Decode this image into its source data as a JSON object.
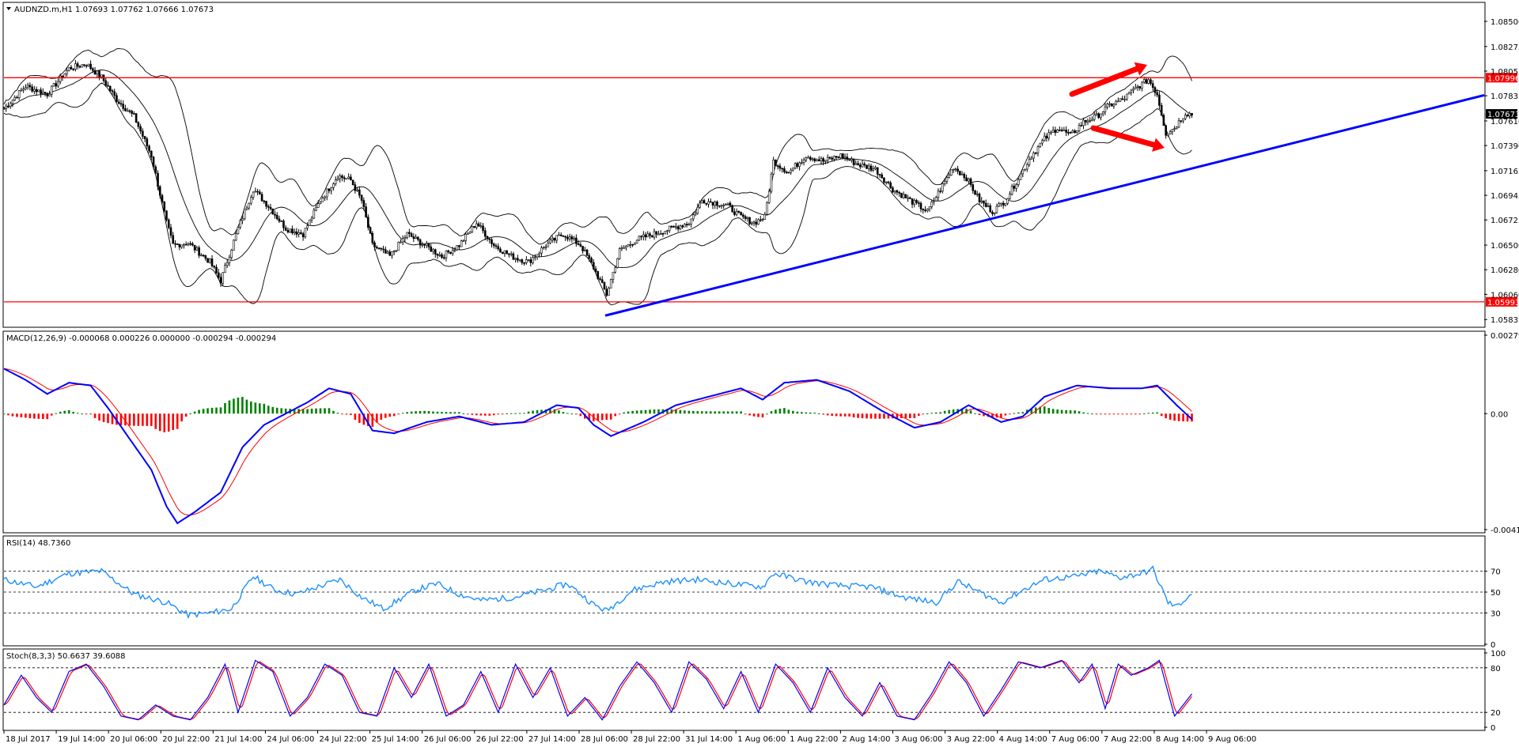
{
  "chart_data": {
    "type": "candlestick",
    "symbol_header": "AUDNZD.m,H1  1.07693 1.07762 1.07666 1.07673",
    "ohlc_last": {
      "open": 1.07693,
      "high": 1.07762,
      "low": 1.07666,
      "close": 1.07673
    },
    "x_tick_labels": [
      "18 Jul 2017",
      "19 Jul 14:00",
      "20 Jul 06:00",
      "20 Jul 22:00",
      "21 Jul 14:00",
      "24 Jul 06:00",
      "24 Jul 22:00",
      "25 Jul 14:00",
      "26 Jul 06:00",
      "26 Jul 22:00",
      "27 Jul 14:00",
      "28 Jul 06:00",
      "28 Jul 22:00",
      "31 Jul 14:00",
      "1 Aug 06:00",
      "1 Aug 22:00",
      "2 Aug 14:00",
      "3 Aug 06:00",
      "3 Aug 22:00",
      "4 Aug 14:00",
      "7 Aug 06:00",
      "7 Aug 22:00",
      "8 Aug 14:00",
      "9 Aug 06:00"
    ],
    "panels": [
      {
        "id": "price",
        "y_tick_labels": [
          "1.08500",
          "1.08275",
          "1.08055",
          "1.07835",
          "1.07610",
          "1.07390",
          "1.07165",
          "1.06945",
          "1.06725",
          "1.06500",
          "1.06280",
          "1.06060",
          "1.05835"
        ],
        "y_range": [
          1.0578,
          1.0862
        ],
        "current_price_label": "1.07673",
        "current_price": 1.07673,
        "horizontal_levels": [
          {
            "value": 1.07996,
            "label": "1.07996",
            "color": "#ff0000"
          },
          {
            "value": 1.05993,
            "label": "1.05993",
            "color": "#ff0000"
          }
        ],
        "trendline": {
          "from": [
            "28 Jul 22:00",
            1.0587
          ],
          "to": [
            "9 Aug 06:00",
            1.0714
          ],
          "color": "#0000ff"
        },
        "annotations": [
          "red-arrow-up: rising highs near 1.080",
          "red-arrow-down: falling oscillator divergence"
        ],
        "bollinger_bands": {
          "color": "#000000"
        }
      },
      {
        "id": "macd",
        "title": "MACD(12,26,9) -0.000068 0.000226 0.000000 -0.000294 -0.000294",
        "y_tick_labels": [
          "0.002791",
          "0.00",
          "-0.004126"
        ],
        "y_range": [
          -0.004126,
          0.002791
        ],
        "lines": [
          {
            "name": "MACD",
            "color": "#0000ff"
          },
          {
            "name": "Signal",
            "color": "#ff0000"
          }
        ],
        "histogram_colors": {
          "positive": "#008000",
          "negative": "#ff0000"
        }
      },
      {
        "id": "rsi",
        "title": "RSI(14) 48.7360",
        "y_tick_labels": [
          "70",
          "50",
          "30",
          "0"
        ],
        "y_range": [
          0,
          100
        ],
        "levels": [
          70,
          50,
          30
        ],
        "line_color": "#1e90ff"
      },
      {
        "id": "stoch",
        "title": "Stoch(8,3,3) 50.6637 39.6088",
        "y_tick_labels": [
          "100",
          "80",
          "20",
          "0"
        ],
        "y_range": [
          0,
          100
        ],
        "levels": [
          80,
          20
        ],
        "lines": [
          {
            "name": "%K",
            "color": "#0000ff"
          },
          {
            "name": "%D",
            "color": "#ff0000"
          }
        ]
      }
    ],
    "price_keypoints": [
      [
        0,
        1.0772
      ],
      [
        10,
        1.0792
      ],
      [
        20,
        1.0785
      ],
      [
        30,
        1.0808
      ],
      [
        38,
        1.0812
      ],
      [
        45,
        1.08
      ],
      [
        52,
        1.078
      ],
      [
        60,
        1.0765
      ],
      [
        68,
        1.073
      ],
      [
        75,
        1.067
      ],
      [
        78,
        1.065
      ],
      [
        85,
        1.0652
      ],
      [
        95,
        1.0635
      ],
      [
        100,
        1.0618
      ],
      [
        108,
        1.0665
      ],
      [
        115,
        1.07
      ],
      [
        122,
        1.0685
      ],
      [
        130,
        1.0665
      ],
      [
        138,
        1.066
      ],
      [
        146,
        1.069
      ],
      [
        154,
        1.0712
      ],
      [
        160,
        1.0708
      ],
      [
        165,
        1.069
      ],
      [
        170,
        1.065
      ],
      [
        178,
        1.064
      ],
      [
        186,
        1.066
      ],
      [
        194,
        1.065
      ],
      [
        202,
        1.064
      ],
      [
        210,
        1.065
      ],
      [
        218,
        1.067
      ],
      [
        226,
        1.065
      ],
      [
        234,
        1.064
      ],
      [
        242,
        1.0635
      ],
      [
        250,
        1.065
      ],
      [
        258,
        1.066
      ],
      [
        266,
        1.065
      ],
      [
        272,
        1.063
      ],
      [
        278,
        1.0606
      ],
      [
        284,
        1.0645
      ],
      [
        292,
        1.0655
      ],
      [
        300,
        1.066
      ],
      [
        308,
        1.0665
      ],
      [
        316,
        1.067
      ],
      [
        322,
        1.069
      ],
      [
        328,
        1.0688
      ],
      [
        334,
        1.0685
      ],
      [
        340,
        1.0675
      ],
      [
        346,
        1.067
      ],
      [
        351,
        1.0675
      ],
      [
        355,
        1.0725
      ],
      [
        362,
        1.0715
      ],
      [
        370,
        1.073
      ],
      [
        378,
        1.0725
      ],
      [
        386,
        1.073
      ],
      [
        394,
        1.0722
      ],
      [
        402,
        1.0718
      ],
      [
        410,
        1.07
      ],
      [
        418,
        1.069
      ],
      [
        426,
        1.068
      ],
      [
        432,
        1.07
      ],
      [
        438,
        1.072
      ],
      [
        444,
        1.071
      ],
      [
        450,
        1.069
      ],
      [
        456,
        1.068
      ],
      [
        462,
        1.069
      ],
      [
        468,
        1.071
      ],
      [
        474,
        1.073
      ],
      [
        480,
        1.0745
      ],
      [
        486,
        1.0755
      ],
      [
        492,
        1.0748
      ],
      [
        498,
        1.076
      ],
      [
        504,
        1.0765
      ],
      [
        510,
        1.0775
      ],
      [
        516,
        1.078
      ],
      [
        522,
        1.079
      ],
      [
        528,
        1.0798
      ],
      [
        532,
        1.0785
      ],
      [
        536,
        1.075
      ],
      [
        540,
        1.0755
      ],
      [
        545,
        1.0768
      ],
      [
        548,
        1.0767
      ]
    ],
    "rsi_keypoints": [
      [
        0,
        62
      ],
      [
        15,
        55
      ],
      [
        30,
        68
      ],
      [
        45,
        70
      ],
      [
        60,
        48
      ],
      [
        75,
        40
      ],
      [
        85,
        28
      ],
      [
        95,
        30
      ],
      [
        105,
        34
      ],
      [
        115,
        65
      ],
      [
        125,
        52
      ],
      [
        135,
        48
      ],
      [
        145,
        55
      ],
      [
        155,
        62
      ],
      [
        165,
        45
      ],
      [
        175,
        34
      ],
      [
        190,
        52
      ],
      [
        200,
        58
      ],
      [
        210,
        48
      ],
      [
        220,
        42
      ],
      [
        235,
        45
      ],
      [
        250,
        52
      ],
      [
        260,
        58
      ],
      [
        272,
        38
      ],
      [
        278,
        32
      ],
      [
        290,
        52
      ],
      [
        305,
        60
      ],
      [
        320,
        62
      ],
      [
        335,
        58
      ],
      [
        350,
        55
      ],
      [
        355,
        68
      ],
      [
        370,
        60
      ],
      [
        385,
        56
      ],
      [
        400,
        55
      ],
      [
        415,
        45
      ],
      [
        430,
        40
      ],
      [
        440,
        60
      ],
      [
        450,
        50
      ],
      [
        460,
        40
      ],
      [
        470,
        52
      ],
      [
        480,
        62
      ],
      [
        495,
        65
      ],
      [
        505,
        70
      ],
      [
        515,
        64
      ],
      [
        525,
        68
      ],
      [
        530,
        72
      ],
      [
        537,
        40
      ],
      [
        541,
        36
      ],
      [
        548,
        49
      ]
    ],
    "macd_keypoints": [
      [
        0,
        0.0016
      ],
      [
        10,
        0.0012
      ],
      [
        20,
        0.0007
      ],
      [
        30,
        0.0011
      ],
      [
        40,
        0.001
      ],
      [
        48,
        0.0002
      ],
      [
        58,
        -0.0009
      ],
      [
        68,
        -0.002
      ],
      [
        75,
        -0.0033
      ],
      [
        80,
        -0.0039
      ],
      [
        88,
        -0.0035
      ],
      [
        100,
        -0.0028
      ],
      [
        110,
        -0.0012
      ],
      [
        120,
        -0.0004
      ],
      [
        130,
        0.0
      ],
      [
        140,
        0.0004
      ],
      [
        150,
        0.0009
      ],
      [
        160,
        0.0007
      ],
      [
        170,
        -0.0006
      ],
      [
        180,
        -0.0007
      ],
      [
        195,
        -0.0003
      ],
      [
        210,
        -0.0001
      ],
      [
        225,
        -0.0004
      ],
      [
        240,
        -0.0003
      ],
      [
        255,
        0.0003
      ],
      [
        265,
        0.0002
      ],
      [
        272,
        -0.0004
      ],
      [
        280,
        -0.0008
      ],
      [
        295,
        -0.0003
      ],
      [
        310,
        0.0003
      ],
      [
        325,
        0.0006
      ],
      [
        340,
        0.0009
      ],
      [
        350,
        0.0005
      ],
      [
        360,
        0.0011
      ],
      [
        375,
        0.0012
      ],
      [
        390,
        0.0008
      ],
      [
        405,
        0.0001
      ],
      [
        420,
        -0.0005
      ],
      [
        432,
        -0.0003
      ],
      [
        445,
        0.0003
      ],
      [
        460,
        -0.0003
      ],
      [
        470,
        -0.0001
      ],
      [
        480,
        0.0006
      ],
      [
        495,
        0.001
      ],
      [
        510,
        0.0009
      ],
      [
        525,
        0.0009
      ],
      [
        532,
        0.001
      ],
      [
        541,
        0.0003
      ],
      [
        548,
        -0.0002
      ]
    ],
    "stoch_keypoints": [
      [
        0,
        30
      ],
      [
        8,
        70
      ],
      [
        15,
        40
      ],
      [
        22,
        20
      ],
      [
        30,
        75
      ],
      [
        38,
        85
      ],
      [
        46,
        55
      ],
      [
        54,
        15
      ],
      [
        62,
        10
      ],
      [
        70,
        30
      ],
      [
        78,
        15
      ],
      [
        86,
        10
      ],
      [
        94,
        40
      ],
      [
        102,
        85
      ],
      [
        108,
        20
      ],
      [
        116,
        90
      ],
      [
        124,
        75
      ],
      [
        132,
        15
      ],
      [
        140,
        40
      ],
      [
        148,
        85
      ],
      [
        156,
        70
      ],
      [
        164,
        20
      ],
      [
        172,
        15
      ],
      [
        180,
        80
      ],
      [
        188,
        40
      ],
      [
        196,
        85
      ],
      [
        204,
        15
      ],
      [
        212,
        30
      ],
      [
        220,
        75
      ],
      [
        228,
        20
      ],
      [
        236,
        85
      ],
      [
        244,
        40
      ],
      [
        252,
        80
      ],
      [
        260,
        15
      ],
      [
        268,
        40
      ],
      [
        276,
        10
      ],
      [
        284,
        55
      ],
      [
        292,
        88
      ],
      [
        300,
        60
      ],
      [
        308,
        20
      ],
      [
        316,
        88
      ],
      [
        324,
        65
      ],
      [
        332,
        25
      ],
      [
        340,
        75
      ],
      [
        348,
        20
      ],
      [
        356,
        85
      ],
      [
        364,
        60
      ],
      [
        372,
        20
      ],
      [
        380,
        80
      ],
      [
        388,
        40
      ],
      [
        396,
        15
      ],
      [
        404,
        60
      ],
      [
        412,
        15
      ],
      [
        420,
        10
      ],
      [
        428,
        45
      ],
      [
        436,
        88
      ],
      [
        444,
        60
      ],
      [
        452,
        15
      ],
      [
        460,
        50
      ],
      [
        468,
        88
      ],
      [
        478,
        80
      ],
      [
        488,
        90
      ],
      [
        496,
        60
      ],
      [
        502,
        85
      ],
      [
        508,
        25
      ],
      [
        514,
        85
      ],
      [
        520,
        70
      ],
      [
        528,
        80
      ],
      [
        533,
        90
      ],
      [
        540,
        15
      ],
      [
        548,
        45
      ]
    ]
  }
}
